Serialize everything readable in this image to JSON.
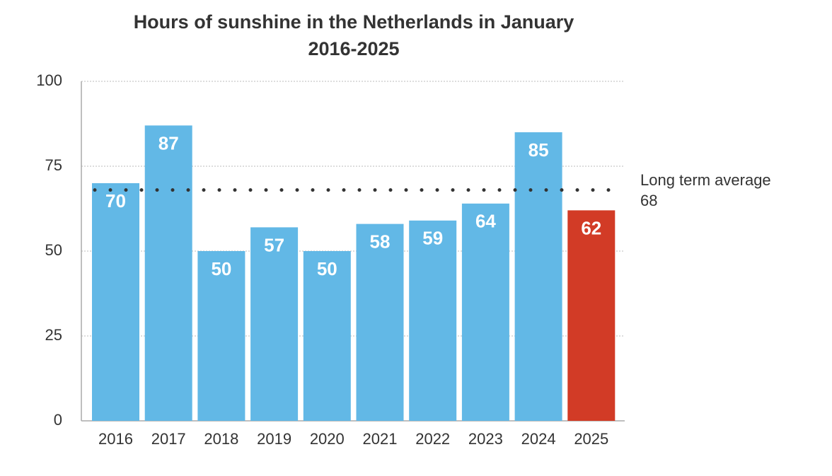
{
  "chart_data": {
    "type": "bar",
    "title": [
      "Hours of sunshine in the Netherlands in January",
      "2016-2025"
    ],
    "categories": [
      "2016",
      "2017",
      "2018",
      "2019",
      "2020",
      "2021",
      "2022",
      "2023",
      "2024",
      "2025"
    ],
    "values": [
      70,
      87,
      50,
      57,
      50,
      58,
      59,
      64,
      85,
      62
    ],
    "colors": [
      "#62b8e6",
      "#62b8e6",
      "#62b8e6",
      "#62b8e6",
      "#62b8e6",
      "#62b8e6",
      "#62b8e6",
      "#62b8e6",
      "#62b8e6",
      "#d23b26"
    ],
    "ylim": [
      0,
      100
    ],
    "yticks": [
      0,
      25,
      50,
      75,
      100
    ],
    "grid": true,
    "reference_line": {
      "value": 68,
      "label": "Long term average"
    }
  }
}
